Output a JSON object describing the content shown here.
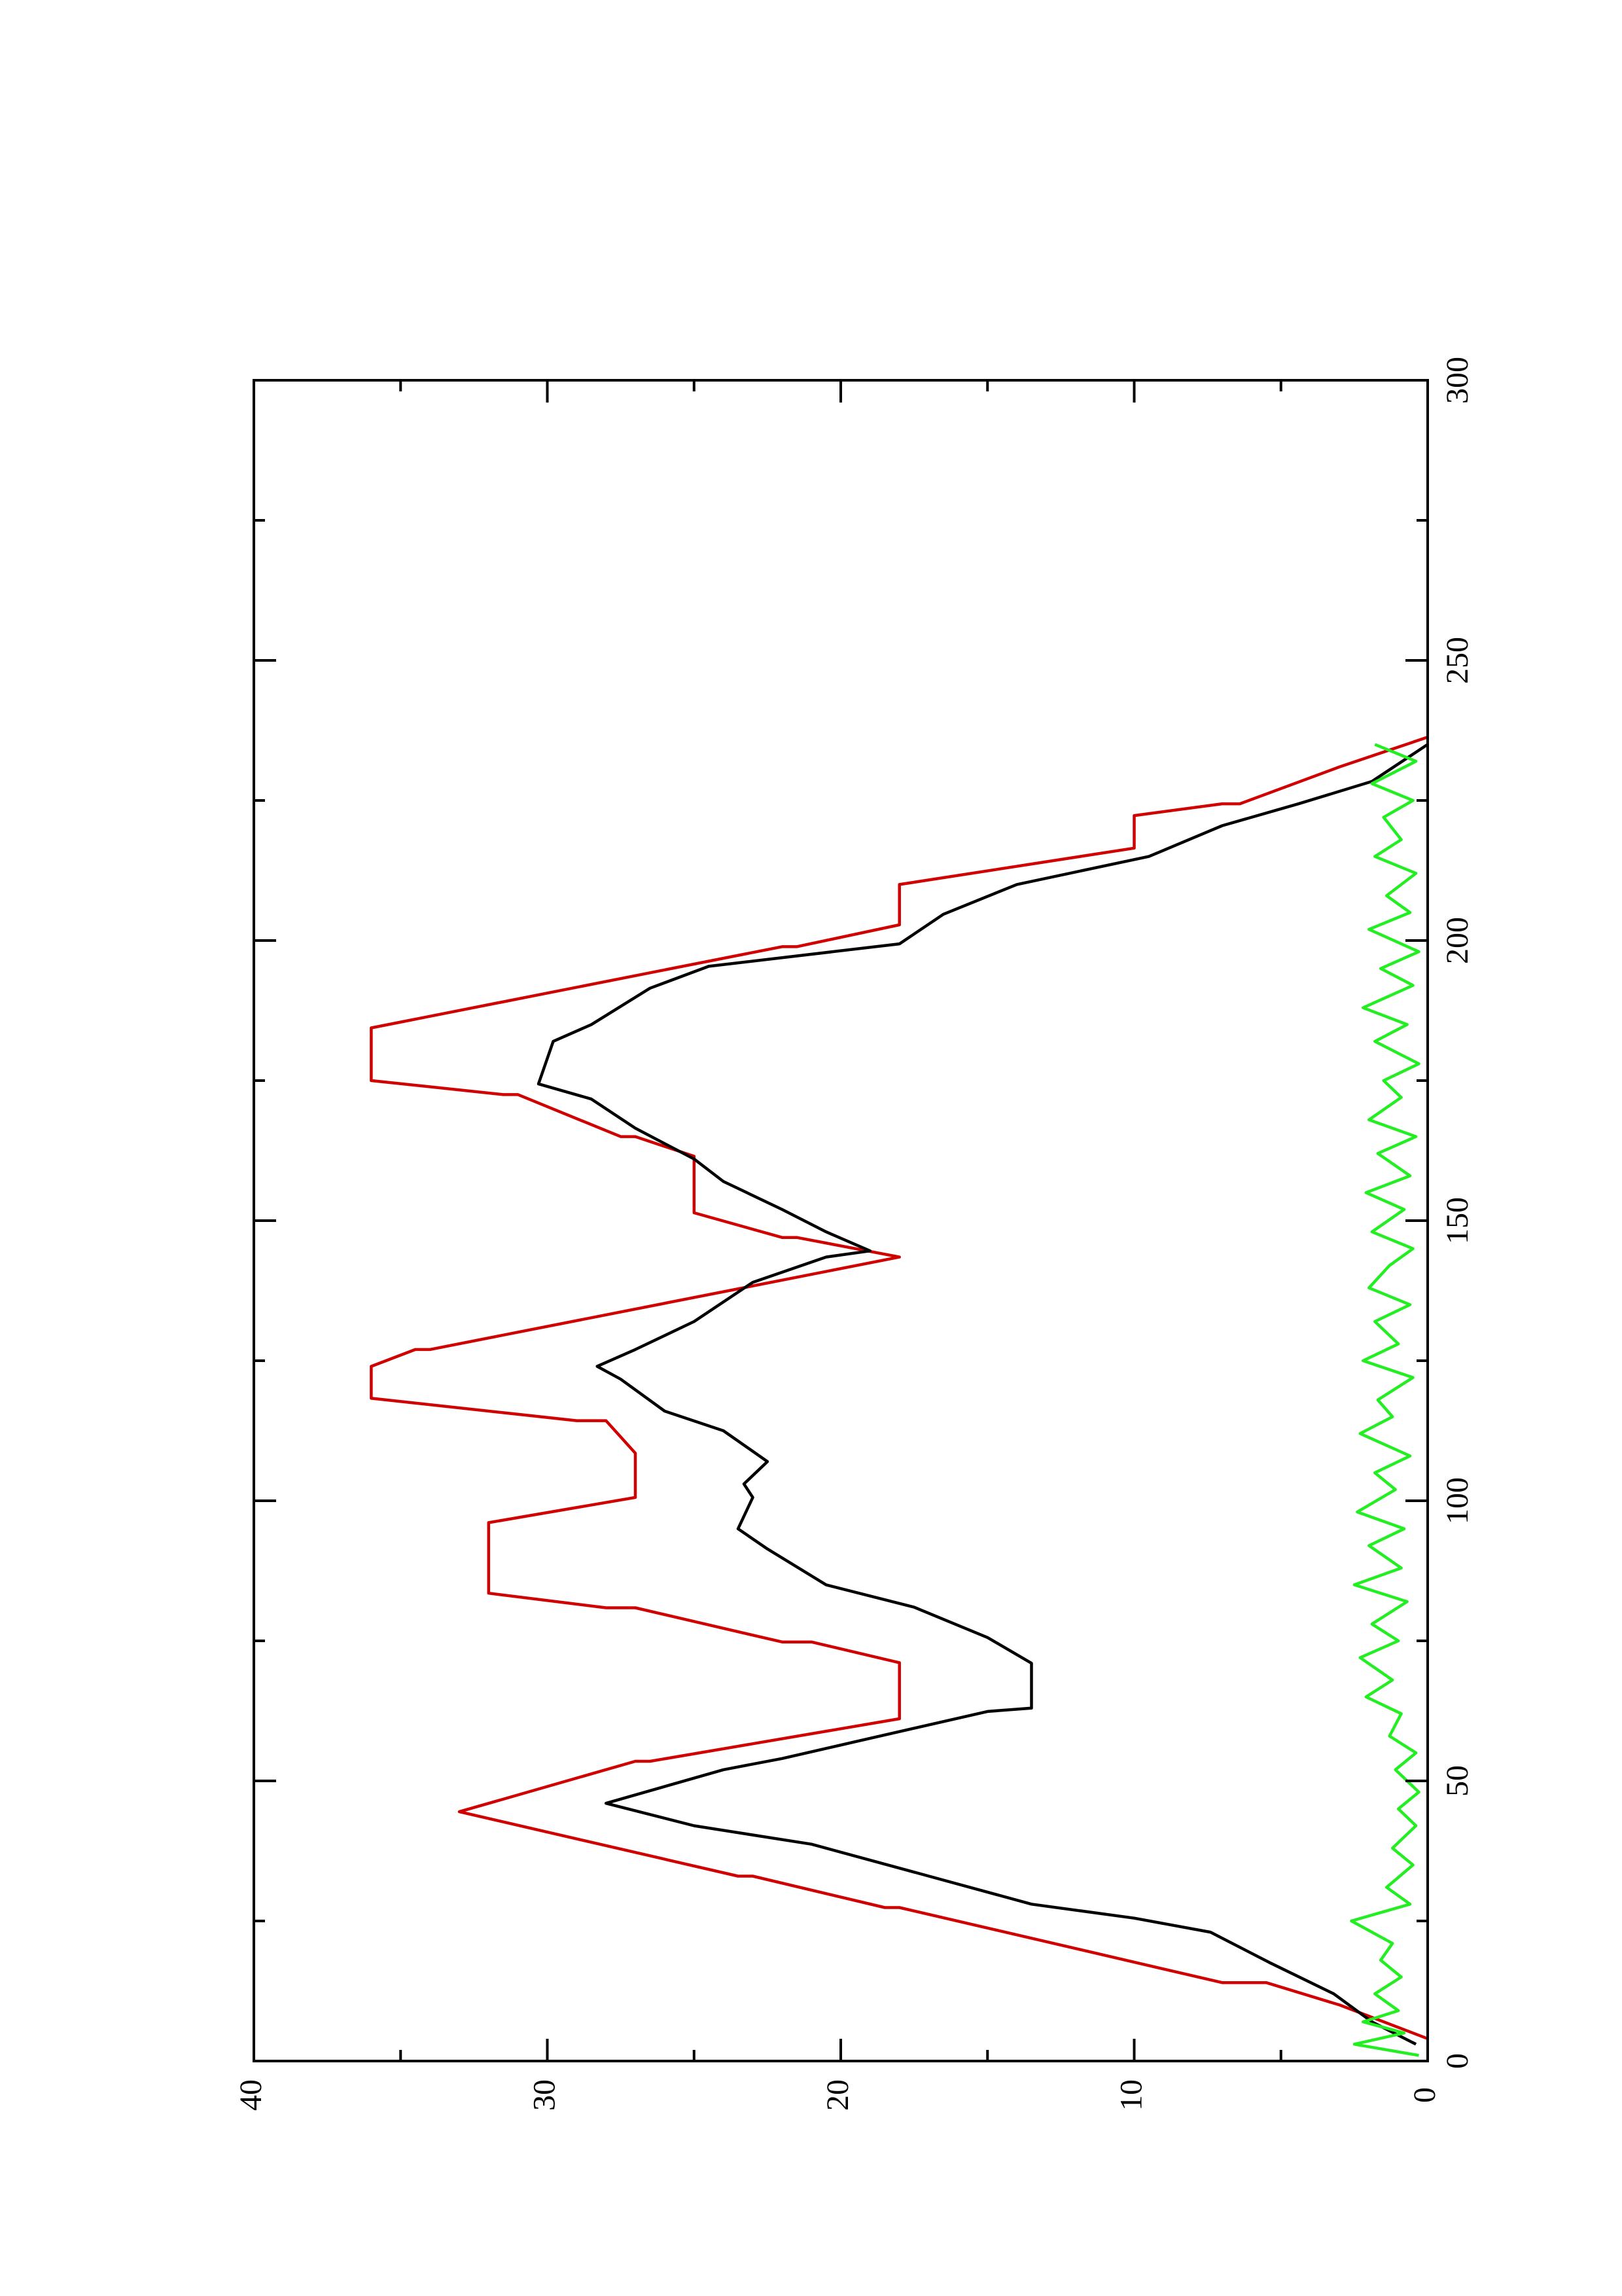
{
  "chart_data": {
    "type": "line",
    "orientation": "rotated",
    "xlim": [
      0,
      300
    ],
    "xticks": [
      0,
      50,
      100,
      150,
      200,
      250,
      300
    ],
    "ylim": [
      0,
      40
    ],
    "yticks": [
      0,
      10,
      20,
      30,
      40
    ],
    "series": [
      {
        "color": "#d00000",
        "x": [
          4,
          10,
          14,
          14,
          27.4,
          27.4,
          33,
          33,
          44.5,
          53.5,
          53.5,
          61.1,
          71.1,
          74.8,
          74.8,
          80.9,
          80.9,
          83.5,
          96.1,
          100.6,
          108.5,
          114.3,
          114.3,
          118.3,
          124,
          127,
          127,
          143.5,
          147,
          147,
          151.4,
          161.5,
          165,
          165,
          172.5,
          172.5,
          175,
          184.4,
          198.9,
          198.9,
          202.8,
          210,
          216.5,
          222.3,
          224.4,
          224.4,
          231,
          236.3
        ],
        "values": [
          0,
          3,
          5.5,
          7,
          18,
          18.5,
          23,
          23.5,
          33,
          27,
          26.5,
          18,
          18,
          21,
          22,
          27,
          28,
          32,
          32,
          27,
          27,
          28,
          29,
          36,
          36,
          34.5,
          34,
          18,
          21.5,
          22,
          25,
          25,
          27,
          27.5,
          31,
          31.5,
          36,
          36,
          22,
          21.5,
          18,
          18,
          10,
          10,
          7,
          6.4,
          3,
          0
        ]
      },
      {
        "color": "#000000",
        "x": [
          3,
          7,
          12,
          17.6,
          23,
          25.5,
          28,
          33,
          38.7,
          42,
          46,
          52,
          54,
          57,
          62.4,
          63,
          71,
          75.6,
          81,
          85,
          91.4,
          95,
          100.6,
          103,
          107,
          112.5,
          116,
          121.7,
          124,
          127,
          132,
          139,
          143.5,
          144.6,
          148,
          152,
          157,
          161,
          166.5,
          171.7,
          174.4,
          182,
          185,
          191.5,
          195.4,
          199.4,
          204.7,
          210,
          215,
          220.5,
          224.4,
          228.4,
          235
        ],
        "values": [
          0.4,
          1.9,
          3.2,
          5.4,
          7.4,
          10,
          13.5,
          17,
          21,
          25,
          28,
          24,
          22,
          19.5,
          15,
          13.5,
          13.5,
          15,
          17.5,
          20.5,
          22.5,
          23.5,
          23,
          23.3,
          22.5,
          24,
          26,
          27.5,
          28.3,
          27,
          25,
          23,
          20.5,
          19,
          20.5,
          22,
          24,
          25,
          27,
          28.5,
          30.3,
          29.8,
          28.5,
          26.5,
          24.5,
          18,
          16.5,
          14,
          9.5,
          7,
          4.4,
          1.9,
          0
        ]
      },
      {
        "color": "#22ee22",
        "x": [
          1,
          3,
          5,
          7,
          9,
          12,
          15,
          18,
          21,
          25,
          28,
          31,
          35,
          38,
          42,
          45,
          48,
          52,
          55,
          58,
          62,
          65,
          68,
          72,
          75,
          78,
          82,
          85,
          88,
          92,
          95,
          98,
          102,
          105,
          108,
          112,
          115,
          118,
          122,
          125,
          128,
          132,
          135,
          138,
          142,
          145,
          148,
          152,
          155,
          158,
          162,
          165,
          168,
          172,
          175,
          178,
          182,
          185,
          188,
          192,
          195,
          198,
          202,
          205,
          208,
          212,
          215,
          218,
          222,
          225,
          228,
          232,
          235
        ],
        "values": [
          0.3,
          2.5,
          0.8,
          2.2,
          1.0,
          1.8,
          0.9,
          1.6,
          1.2,
          2.6,
          0.6,
          1.4,
          0.5,
          1.2,
          0.4,
          1.0,
          0.3,
          1.1,
          0.4,
          1.3,
          0.9,
          2.1,
          1.2,
          2.3,
          1.0,
          1.9,
          0.7,
          2.5,
          0.9,
          2.0,
          0.8,
          2.4,
          1.1,
          1.8,
          0.6,
          2.3,
          1.2,
          1.7,
          0.5,
          2.2,
          1.0,
          1.8,
          0.6,
          2.0,
          1.3,
          0.5,
          1.9,
          0.8,
          2.1,
          0.6,
          1.7,
          0.4,
          2.0,
          0.9,
          1.5,
          0.3,
          1.8,
          0.7,
          2.2,
          0.5,
          1.6,
          0.3,
          2.0,
          0.6,
          1.4,
          0.4,
          1.8,
          0.9,
          1.5,
          0.5,
          1.9,
          0.4,
          1.8
        ]
      }
    ]
  }
}
